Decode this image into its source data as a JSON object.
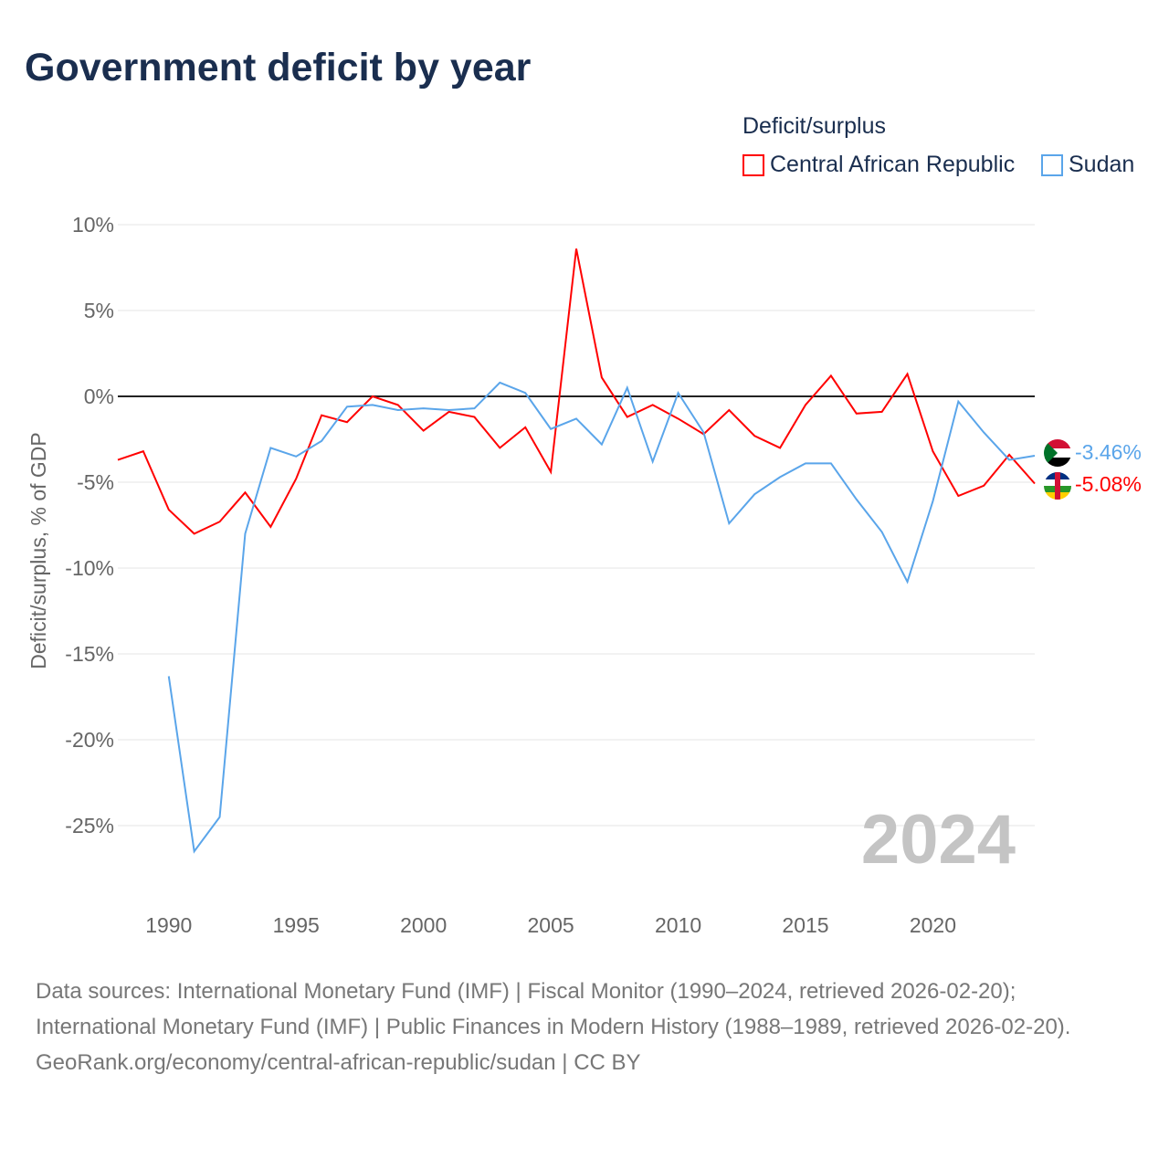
{
  "title": "Government deficit by year",
  "legend": {
    "title": "Deficit/surplus",
    "items": [
      {
        "name": "Central African Republic",
        "color": "#ff0000"
      },
      {
        "name": "Sudan",
        "color": "#5aa5ea"
      }
    ]
  },
  "year_watermark": "2024",
  "end_labels": {
    "sudan": "-3.46%",
    "car": "-5.08%"
  },
  "footer": {
    "sources": "Data sources: International Monetary Fund (IMF) | Fiscal Monitor (1990–2024, retrieved 2026-02-20); International Monetary Fund (IMF) | Public Finances in Modern History (1988–1989, retrieved 2026-02-20).",
    "credit": "GeoRank.org/economy/central-african-republic/sudan | CC BY"
  },
  "chart_data": {
    "type": "line",
    "title": "Government deficit by year",
    "xlabel": "",
    "ylabel": "Deficit/surplus, % of GDP",
    "xlim": [
      1988,
      2024
    ],
    "ylim": [
      -29,
      12
    ],
    "xticks": [
      1990,
      1995,
      2000,
      2005,
      2010,
      2015,
      2020
    ],
    "yticks": [
      10,
      5,
      0,
      -5,
      -10,
      -15,
      -20,
      -25
    ],
    "ytick_labels": [
      "10%",
      "5%",
      "0%",
      "-5%",
      "-10%",
      "-15%",
      "-20%",
      "-25%"
    ],
    "grid": true,
    "legend_position": "top-right",
    "series": [
      {
        "name": "Central African Republic",
        "color": "#ff0000",
        "start_year": 1988,
        "values": [
          -3.7,
          -3.2,
          -6.6,
          -8.0,
          -7.3,
          -5.6,
          -7.6,
          -4.8,
          -1.1,
          -1.5,
          0.0,
          -0.5,
          -2.0,
          -0.9,
          -1.2,
          -3.0,
          -1.8,
          -4.4,
          8.6,
          1.1,
          -1.2,
          -0.5,
          -1.3,
          -2.2,
          -0.8,
          -2.3,
          -3.0,
          -0.5,
          1.2,
          -1.0,
          -0.9,
          1.3,
          -3.2,
          -5.8,
          -5.2,
          -3.4,
          -5.08
        ]
      },
      {
        "name": "Sudan",
        "color": "#5aa5ea",
        "start_year": 1990,
        "values": [
          -16.3,
          -26.5,
          -24.5,
          -8.0,
          -3.0,
          -3.5,
          -2.6,
          -0.6,
          -0.5,
          -0.8,
          -0.7,
          -0.8,
          -0.7,
          0.8,
          0.2,
          -1.9,
          -1.3,
          -2.8,
          0.5,
          -3.8,
          0.2,
          -2.1,
          -7.4,
          -5.7,
          -4.7,
          -3.9,
          -3.9,
          -6.0,
          -7.9,
          -10.8,
          -6.1,
          -0.3,
          -2.1,
          -3.7,
          -3.46
        ]
      }
    ]
  }
}
